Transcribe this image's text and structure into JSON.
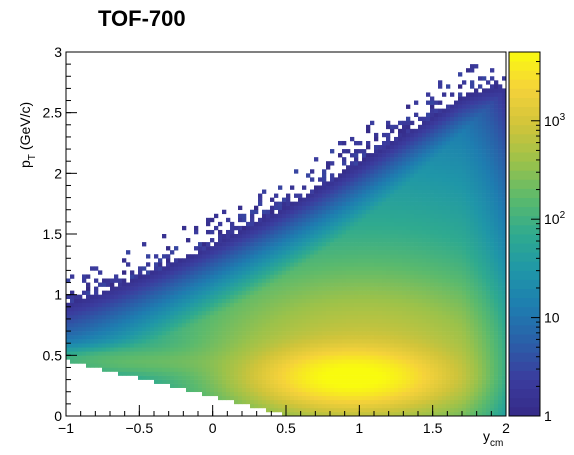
{
  "chart_data": {
    "type": "heatmap",
    "title": "TOF-700",
    "xlabel": "y",
    "xlabel_subscript": "cm",
    "ylabel": "p",
    "ylabel_subscript": "T",
    "ylabel_unit": "(GeV/c)",
    "xlim": [
      -1,
      2
    ],
    "ylim": [
      0,
      3
    ],
    "x_ticks": [
      {
        "value": -1,
        "label": "−1"
      },
      {
        "value": -0.5,
        "label": "−0.5"
      },
      {
        "value": 0,
        "label": "0"
      },
      {
        "value": 0.5,
        "label": "0.5"
      },
      {
        "value": 1,
        "label": "1"
      },
      {
        "value": 1.5,
        "label": "1.5"
      },
      {
        "value": 2,
        "label": "2"
      }
    ],
    "y_ticks": [
      {
        "value": 0,
        "label": "0"
      },
      {
        "value": 0.5,
        "label": "0.5"
      },
      {
        "value": 1,
        "label": "1"
      },
      {
        "value": 1.5,
        "label": "1.5"
      },
      {
        "value": 2,
        "label": "2"
      },
      {
        "value": 2.5,
        "label": "2.5"
      },
      {
        "value": 3,
        "label": "3"
      }
    ],
    "z_scale": "log",
    "zlim": [
      1,
      5000
    ],
    "z_ticks": [
      {
        "value": 1,
        "label": "1"
      },
      {
        "value": 10,
        "label": "10"
      },
      {
        "value": 100,
        "label": "10",
        "exponent": "2"
      },
      {
        "value": 1000,
        "label": "10",
        "exponent": "3"
      }
    ],
    "colormap": [
      "#352a87",
      "#3b3c9e",
      "#2b5ea8",
      "#1e7db0",
      "#1f96a8",
      "#2faa8f",
      "#5cba6c",
      "#9cc24a",
      "#d0c43a",
      "#f5d23a",
      "#f9fb0e"
    ],
    "grid": false
  }
}
